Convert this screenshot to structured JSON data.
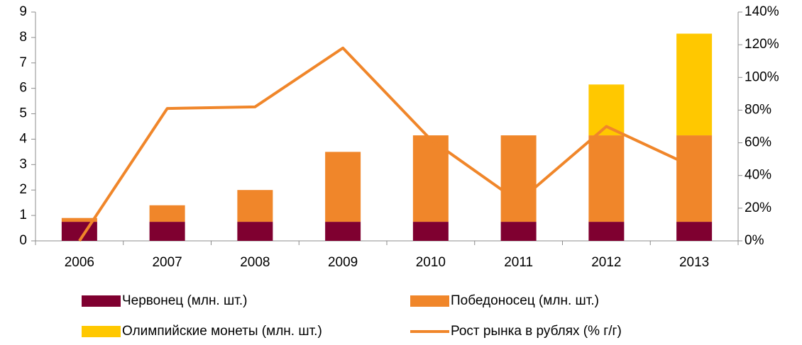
{
  "chart_data": {
    "type": "bar",
    "categories": [
      "2006",
      "2007",
      "2008",
      "2009",
      "2010",
      "2011",
      "2012",
      "2013"
    ],
    "series": [
      {
        "name": "Червонец (млн. шт.)",
        "color": "#7f0030",
        "values": [
          0.75,
          0.75,
          0.75,
          0.75,
          0.75,
          0.75,
          0.75,
          0.75
        ]
      },
      {
        "name": "Победоносец (млн. шт.)",
        "color": "#f0862a",
        "values": [
          0.15,
          0.65,
          1.25,
          2.75,
          3.4,
          3.4,
          3.4,
          3.4
        ]
      },
      {
        "name": "Олимпийские монеты (млн. шт.)",
        "color": "#ffc800",
        "values": [
          0,
          0,
          0,
          0,
          0,
          0,
          2.0,
          4.0
        ]
      },
      {
        "name": "Рост рынка в рублях (% г/г)",
        "color": "#f0862a",
        "type": "line",
        "axis": "y2",
        "values": [
          0,
          81,
          82,
          118,
          62,
          24,
          70,
          45
        ]
      }
    ],
    "stacked": true,
    "ylim": [
      0,
      9
    ],
    "yticks": [
      0,
      1,
      2,
      3,
      4,
      5,
      6,
      7,
      8,
      9
    ],
    "y2lim": [
      0,
      140
    ],
    "y2ticks": [
      {
        "value": 0,
        "label": "0%"
      },
      {
        "value": 20,
        "label": "20%"
      },
      {
        "value": 40,
        "label": "40%"
      },
      {
        "value": 60,
        "label": "60%"
      },
      {
        "value": 80,
        "label": "80%"
      },
      {
        "value": 100,
        "label": "100%"
      },
      {
        "value": 120,
        "label": "120%"
      },
      {
        "value": 140,
        "label": "140%"
      }
    ],
    "grid": false,
    "legend": "bottom"
  }
}
